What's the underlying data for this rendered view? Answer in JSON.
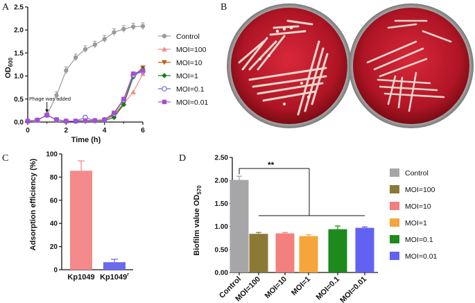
{
  "panels": {
    "A": "A",
    "B": "B",
    "C": "C",
    "D": "D"
  },
  "chart_data": [
    {
      "type": "line",
      "panel": "A",
      "xlabel": "Time (h)",
      "ylabel": "OD",
      "ylabel_sub": "600",
      "xlim": [
        0,
        6
      ],
      "ylim": [
        0,
        2.5
      ],
      "xticks": [
        "0",
        "2",
        "4",
        "6"
      ],
      "yticks": [
        "0.0",
        "0.5",
        "1.0",
        "1.5",
        "2.0",
        "2.5"
      ],
      "annotation": "Phage was added",
      "annotation_x": 1,
      "x": [
        0,
        0.5,
        1,
        1.5,
        2,
        2.5,
        3,
        3.5,
        4,
        4.5,
        5,
        5.5,
        6
      ],
      "series": [
        {
          "name": "Control",
          "color": "#9a9a9a",
          "marker": "circle",
          "values": [
            0.02,
            0.05,
            0.15,
            0.58,
            1.12,
            1.4,
            1.58,
            1.68,
            1.8,
            1.95,
            2.02,
            2.07,
            2.08
          ]
        },
        {
          "name": "MOI=100",
          "color": "#f28c8c",
          "marker": "triangle",
          "values": [
            0.02,
            0.04,
            0.15,
            0.05,
            0.02,
            0.02,
            0.03,
            0.04,
            0.05,
            0.15,
            0.4,
            0.65,
            1.05
          ]
        },
        {
          "name": "MOI=10",
          "color": "#c05a10",
          "marker": "triangle-down",
          "values": [
            0.02,
            0.04,
            0.15,
            0.05,
            0.02,
            0.02,
            0.03,
            0.03,
            0.05,
            0.15,
            0.4,
            1.0,
            1.18
          ]
        },
        {
          "name": "MOI=1",
          "color": "#1a7a1a",
          "marker": "diamond",
          "values": [
            0.02,
            0.04,
            0.15,
            0.05,
            0.02,
            0.02,
            0.03,
            0.03,
            0.03,
            0.1,
            0.38,
            0.98,
            1.15
          ]
        },
        {
          "name": "MOI=0.1",
          "color": "#6a6ae0",
          "marker": "circle-open",
          "values": [
            0.02,
            0.04,
            0.15,
            0.05,
            0.02,
            0.02,
            0.1,
            0.03,
            0.05,
            0.18,
            0.48,
            1.02,
            1.1
          ]
        },
        {
          "name": "MOI=0.01",
          "color": "#a64fd0",
          "marker": "square",
          "values": [
            0.02,
            0.04,
            0.15,
            0.05,
            0.02,
            0.02,
            0.03,
            0.03,
            0.05,
            0.2,
            0.5,
            1.05,
            1.12
          ]
        }
      ]
    },
    {
      "type": "bar",
      "panel": "C",
      "ylabel": "Adsorption efficiency (%)",
      "ylim": [
        0,
        100
      ],
      "yticks": [
        "0",
        "20",
        "40",
        "60",
        "80",
        "100"
      ],
      "categories": [
        "Kp1049",
        "Kp1049"
      ],
      "category_sup": [
        "",
        "r"
      ],
      "values": [
        85.5,
        6.5
      ],
      "errors": [
        8.5,
        2.5
      ],
      "colors": [
        "#f58a8a",
        "#6a6af0"
      ]
    },
    {
      "type": "bar",
      "panel": "D",
      "ylabel": "Biofilm value OD",
      "ylabel_sub": "570",
      "ylim": [
        0,
        2.5
      ],
      "yticks": [
        "0.00",
        "0.50",
        "1.00",
        "1.50",
        "2.00",
        "2.50"
      ],
      "categories": [
        "Control",
        "MOI=100",
        "MOI=10",
        "MOI=1",
        "MOI=0.1",
        "MOI=0.01"
      ],
      "values": [
        2.01,
        0.84,
        0.85,
        0.79,
        0.94,
        0.97
      ],
      "errors": [
        0.08,
        0.03,
        0.02,
        0.03,
        0.07,
        0.02
      ],
      "colors": [
        "#a6a6a8",
        "#8b7a35",
        "#f37f7f",
        "#f5a53c",
        "#1e8a1e",
        "#6262f2"
      ],
      "significance": "**"
    }
  ]
}
